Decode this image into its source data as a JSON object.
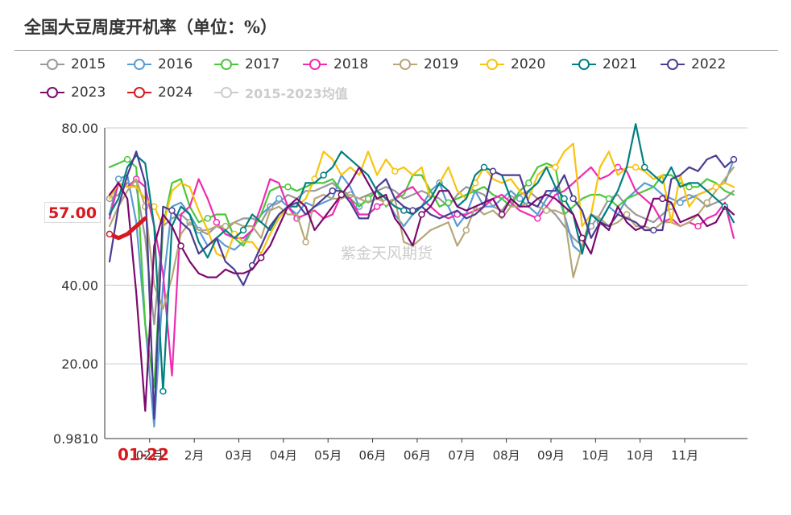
{
  "title": "全国大豆周度开机率（单位：%）",
  "watermark": "紫金天风期货",
  "current_value_label": "57.00",
  "current_date_label": "01-22",
  "chart_data": {
    "type": "line",
    "title": "全国大豆周度开机率（单位：%）",
    "xlabel": "",
    "ylabel": "",
    "y_ticks": [
      "80.00",
      "40.00",
      "20.00",
      "0.9810"
    ],
    "y_tick_values": [
      80,
      40,
      20,
      0.981
    ],
    "ylim": [
      0.981,
      80
    ],
    "x_tick_labels": [
      "02月",
      "2月",
      "03月",
      "04月",
      "05月",
      "06月",
      "06月",
      "07月",
      "08月",
      "09月",
      "10月",
      "10月",
      "11月"
    ],
    "x_tick_positions": [
      4.5,
      9.5,
      14.5,
      19.5,
      24.5,
      29.5,
      34.5,
      39.5,
      44.5,
      49.5,
      54.5,
      59.5,
      64.5
    ],
    "x_range": [
      0,
      71
    ],
    "grid": true,
    "legend_position": "top",
    "series": [
      {
        "name": "2015",
        "color": "#999999",
        "values": [
          62,
          63,
          66,
          65,
          52,
          30,
          55,
          57,
          58,
          56,
          54,
          53,
          55,
          54,
          56,
          57,
          57,
          56,
          60,
          61,
          63,
          62,
          64,
          64,
          65,
          66,
          64,
          63,
          62,
          63,
          64,
          65,
          64,
          62,
          63,
          64,
          63,
          62,
          60,
          63,
          65,
          64,
          63,
          60,
          59,
          62,
          63,
          64,
          62,
          60,
          58,
          55,
          52,
          50,
          55,
          58,
          62,
          63,
          60,
          58,
          57,
          56,
          58,
          60,
          62,
          63,
          62,
          60,
          61,
          62,
          64
        ]
      },
      {
        "name": "2016",
        "color": "#5b9bd5",
        "values": [
          58,
          67,
          68,
          56,
          30,
          4,
          40,
          60,
          61,
          58,
          54,
          50,
          52,
          50,
          49,
          51,
          54,
          58,
          60,
          62,
          60,
          58,
          61,
          60,
          61,
          62,
          68,
          65,
          60,
          62,
          64,
          62,
          58,
          55,
          58,
          60,
          64,
          66,
          60,
          55,
          58,
          64,
          60,
          60,
          62,
          64,
          62,
          60,
          58,
          62,
          65,
          58,
          50,
          48,
          58,
          56,
          60,
          58,
          62,
          64,
          66,
          65,
          63,
          62,
          61,
          62,
          63,
          64,
          65,
          66,
          72
        ]
      },
      {
        "name": "2017",
        "color": "#4ac73a",
        "values": [
          70,
          71,
          72,
          70,
          30,
          14,
          55,
          66,
          67,
          60,
          56,
          57,
          58,
          58,
          52,
          50,
          54,
          58,
          64,
          65,
          65,
          64,
          65,
          66,
          66,
          67,
          64,
          62,
          60,
          62,
          64,
          60,
          62,
          63,
          68,
          68,
          64,
          60,
          61,
          62,
          63,
          64,
          65,
          63,
          62,
          60,
          64,
          66,
          70,
          71,
          70,
          58,
          60,
          62,
          63,
          63,
          62,
          60,
          62,
          63,
          64,
          65,
          68,
          68,
          66,
          65,
          65,
          67,
          66,
          64,
          63
        ]
      },
      {
        "name": "2018",
        "color": "#ef2bb2",
        "values": [
          57,
          66,
          65,
          67,
          65,
          55,
          43,
          17,
          58,
          60,
          67,
          62,
          56,
          53,
          52,
          52,
          54,
          60,
          67,
          66,
          60,
          57,
          58,
          59,
          57,
          58,
          63,
          62,
          58,
          58,
          60,
          61,
          62,
          64,
          65,
          62,
          60,
          58,
          57,
          58,
          58,
          59,
          60,
          62,
          63,
          61,
          59,
          58,
          57,
          60,
          63,
          64,
          66,
          68,
          70,
          67,
          68,
          70,
          69,
          64,
          62,
          60,
          56,
          57,
          55,
          56,
          55,
          57,
          58,
          61,
          52
        ]
      },
      {
        "name": "2019",
        "color": "#b6a778",
        "values": [
          55,
          60,
          64,
          67,
          60,
          40,
          34,
          42,
          53,
          56,
          54,
          54,
          55,
          55,
          56,
          55,
          55,
          52,
          59,
          60,
          58,
          58,
          51,
          62,
          63,
          62,
          62,
          63,
          62,
          61,
          62,
          61,
          62,
          51,
          50,
          52,
          54,
          55,
          56,
          50,
          54,
          60,
          58,
          59,
          57,
          60,
          60,
          61,
          60,
          59,
          59,
          58,
          42,
          50,
          58,
          57,
          55,
          56,
          58,
          55,
          55,
          54,
          56,
          56,
          55,
          56,
          58,
          61,
          64,
          67,
          70
        ]
      },
      {
        "name": "2020",
        "color": "#f9c30f",
        "values": [
          62,
          66,
          65,
          65,
          62,
          60,
          55,
          64,
          66,
          65,
          59,
          54,
          48,
          47,
          53,
          51,
          51,
          48,
          53,
          57,
          60,
          60,
          62,
          67,
          74,
          72,
          68,
          70,
          68,
          74,
          68,
          72,
          69,
          70,
          68,
          70,
          62,
          66,
          70,
          64,
          62,
          66,
          70,
          67,
          66,
          67,
          64,
          62,
          68,
          70,
          70,
          74,
          76,
          55,
          58,
          70,
          74,
          68,
          70,
          70,
          69,
          67,
          68,
          56,
          68,
          60,
          63,
          64,
          65,
          66,
          65
        ]
      },
      {
        "name": "2021",
        "color": "#008080",
        "values": [
          58,
          62,
          70,
          73,
          71,
          55,
          13,
          55,
          60,
          58,
          51,
          47,
          52,
          54,
          52,
          54,
          58,
          56,
          54,
          58,
          60,
          60,
          66,
          66,
          68,
          70,
          74,
          72,
          70,
          68,
          64,
          62,
          60,
          59,
          58,
          60,
          62,
          66,
          64,
          60,
          62,
          68,
          70,
          69,
          68,
          62,
          60,
          64,
          66,
          70,
          65,
          62,
          58,
          48,
          58,
          56,
          60,
          64,
          70,
          81,
          70,
          68,
          66,
          70,
          65,
          66,
          66,
          64,
          62,
          60,
          56
        ]
      },
      {
        "name": "2022",
        "color": "#4b3c93",
        "values": [
          46,
          60,
          68,
          74,
          66,
          6,
          60,
          59,
          56,
          54,
          48,
          50,
          52,
          46,
          44,
          40,
          45,
          50,
          55,
          58,
          60,
          61,
          58,
          60,
          62,
          64,
          64,
          61,
          57,
          57,
          65,
          67,
          62,
          60,
          59,
          60,
          58,
          57,
          58,
          59,
          57,
          58,
          60,
          69,
          68,
          68,
          68,
          61,
          60,
          64,
          64,
          68,
          62,
          59,
          52,
          56,
          55,
          58,
          57,
          56,
          54,
          54,
          54,
          67,
          68,
          70,
          69,
          72,
          73,
          70,
          72
        ]
      },
      {
        "name": "2023",
        "color": "#7b0a6e",
        "values": [
          63,
          66,
          62,
          38,
          8,
          50,
          58,
          55,
          50,
          46,
          43,
          42,
          42,
          44,
          43,
          43,
          44,
          47,
          50,
          55,
          60,
          62,
          60,
          54,
          57,
          60,
          63,
          66,
          70,
          66,
          62,
          63,
          57,
          54,
          50,
          58,
          60,
          64,
          64,
          60,
          59,
          60,
          61,
          62,
          58,
          62,
          60,
          60,
          62,
          63,
          62,
          60,
          58,
          52,
          48,
          56,
          54,
          60,
          56,
          54,
          55,
          62,
          62,
          61,
          56,
          57,
          58,
          55,
          56,
          60,
          58
        ]
      },
      {
        "name": "2024",
        "color": "#d71920",
        "values": [
          53,
          52,
          53,
          55,
          57
        ]
      },
      {
        "name": "2015-2023均值",
        "color": "#cccccc",
        "values": []
      }
    ]
  }
}
